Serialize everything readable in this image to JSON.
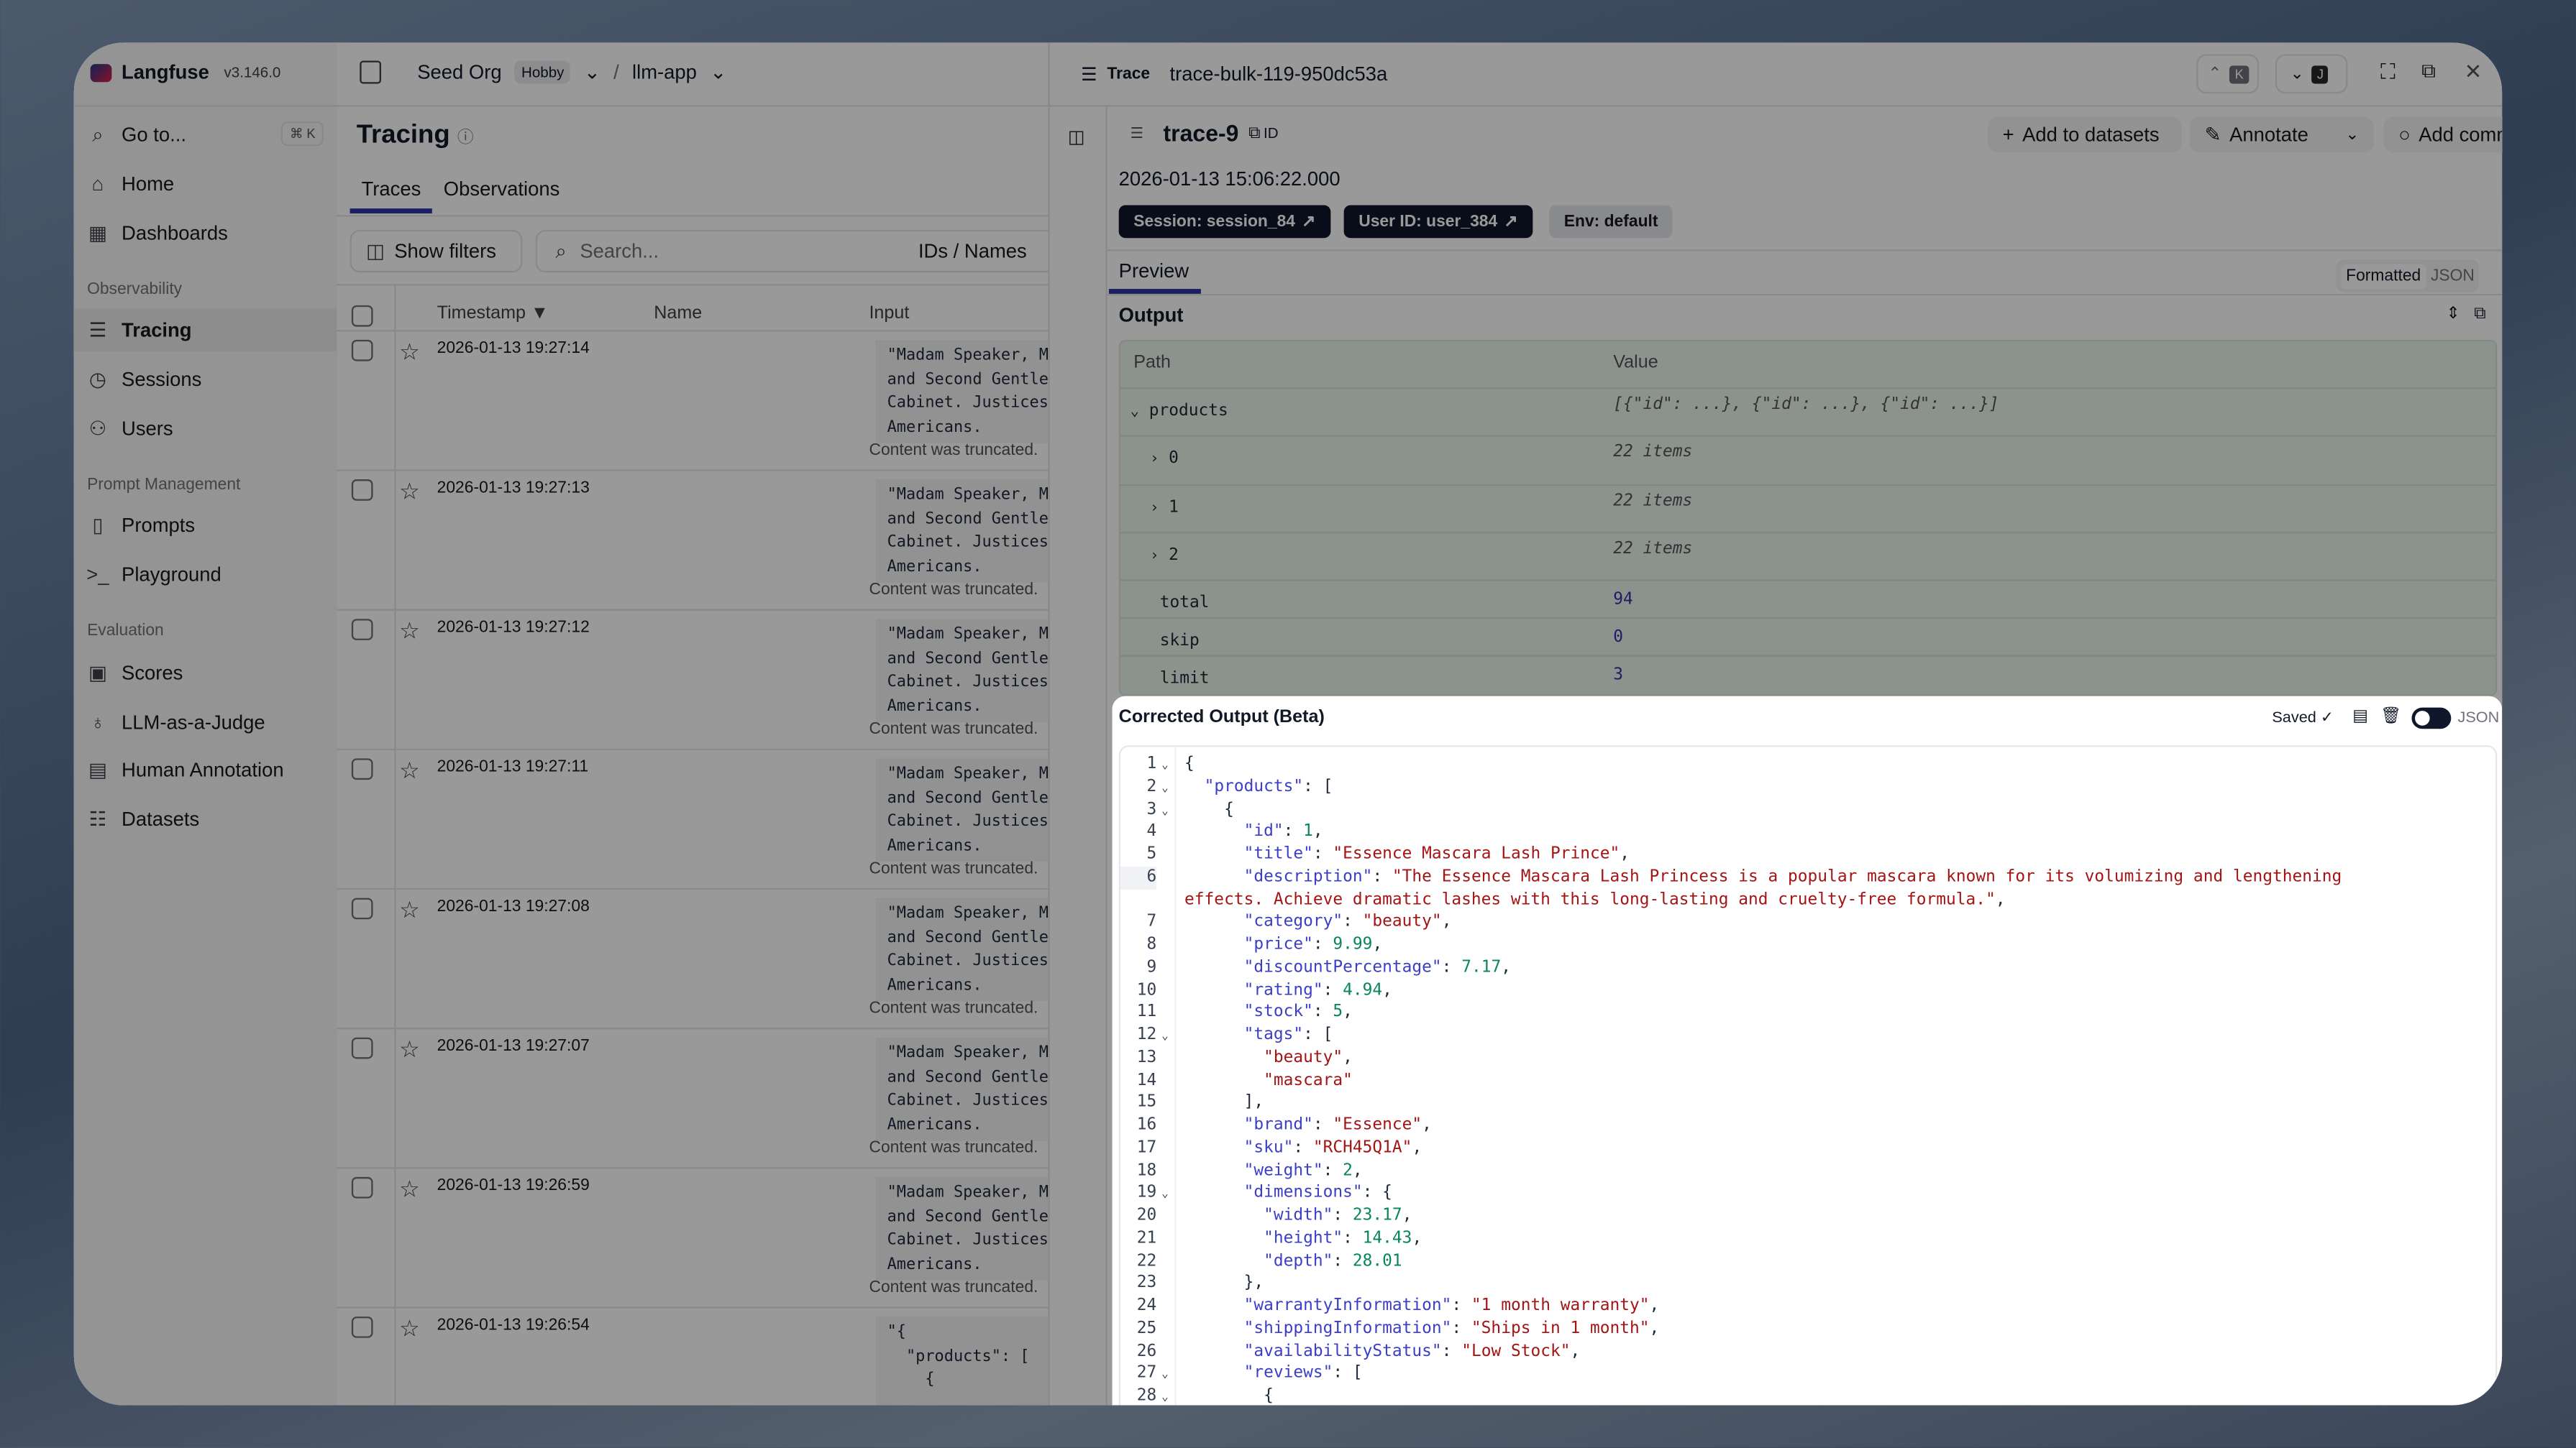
{
  "app": {
    "name": "Langfuse",
    "version": "v3.146.0"
  },
  "sidebar": {
    "goto": {
      "label": "Go to...",
      "shortcut": "⌘ K"
    },
    "items_top": [
      {
        "label": "Home",
        "icon": "home-icon"
      },
      {
        "label": "Dashboards",
        "icon": "dashboard-icon"
      }
    ],
    "sections": [
      {
        "title": "Observability",
        "items": [
          {
            "label": "Tracing",
            "icon": "tracing-icon",
            "active": true
          },
          {
            "label": "Sessions",
            "icon": "clock-icon"
          },
          {
            "label": "Users",
            "icon": "users-icon"
          }
        ]
      },
      {
        "title": "Prompt Management",
        "items": [
          {
            "label": "Prompts",
            "icon": "file-code-icon"
          },
          {
            "label": "Playground",
            "icon": "terminal-icon"
          }
        ]
      },
      {
        "title": "Evaluation",
        "items": [
          {
            "label": "Scores",
            "icon": "scores-icon"
          },
          {
            "label": "LLM-as-a-Judge",
            "icon": "lightbulb-icon"
          },
          {
            "label": "Human Annotation",
            "icon": "annotation-icon"
          },
          {
            "label": "Datasets",
            "icon": "database-icon"
          }
        ]
      }
    ]
  },
  "breadcrumb": {
    "org": "Seed Org",
    "plan": "Hobby",
    "project": "llm-app"
  },
  "tracing": {
    "title": "Tracing",
    "tabs": [
      "Traces",
      "Observations"
    ],
    "show_filters": "Show filters",
    "search_placeholder": "Search...",
    "search_mode": "IDs / Names",
    "columns": [
      "Timestamp ▼",
      "Name",
      "Input"
    ],
    "truncated_note": "Content was truncated.",
    "rows": [
      {
        "timestamp": "2026-01-13 19:27:14",
        "input": "\"Madam Speaker, Ma\nand Second Gentlem\nCabinet. Justices\nAmericans."
      },
      {
        "timestamp": "2026-01-13 19:27:13",
        "input": "\"Madam Speaker, Ma\nand Second Gentlem\nCabinet. Justices\nAmericans."
      },
      {
        "timestamp": "2026-01-13 19:27:12",
        "input": "\"Madam Speaker, Ma\nand Second Gentlem\nCabinet. Justices\nAmericans."
      },
      {
        "timestamp": "2026-01-13 19:27:11",
        "input": "\"Madam Speaker, Ma\nand Second Gentlem\nCabinet. Justices\nAmericans."
      },
      {
        "timestamp": "2026-01-13 19:27:08",
        "input": "\"Madam Speaker, Ma\nand Second Gentlem\nCabinet. Justices\nAmericans."
      },
      {
        "timestamp": "2026-01-13 19:27:07",
        "input": "\"Madam Speaker, Ma\nand Second Gentlem\nCabinet. Justices\nAmericans."
      },
      {
        "timestamp": "2026-01-13 19:26:59",
        "input": "\"Madam Speaker, Ma\nand Second Gentlem\nCabinet. Justices\nAmericans."
      },
      {
        "timestamp": "2026-01-13 19:26:54",
        "input": "\"{\n  \"products\": [\n    {"
      }
    ]
  },
  "detail": {
    "header_label": "Trace",
    "trace_id": "trace-bulk-119-950dc53a",
    "nav_up_key": "K",
    "nav_down_key": "J",
    "trace_name": "trace-9",
    "id_label": "ID",
    "add_to_datasets": "Add to datasets",
    "annotate": "Annotate",
    "add_comment": "Add comment",
    "timestamp": "2026-01-13 15:06:22.000",
    "badges": {
      "session": "Session: session_84",
      "user": "User ID: user_384",
      "env": "Env: default"
    },
    "tab": "Preview",
    "view_modes": [
      "Formatted",
      "JSON"
    ],
    "output_label": "Output",
    "table_headers": [
      "Path",
      "Value"
    ],
    "table_rows": [
      {
        "path": "products",
        "value": "[{\"id\": ...}, {\"id\": ...}, {\"id\": ...}]",
        "toggle": "⌄",
        "indent": 0,
        "kind": "summary"
      },
      {
        "path": "0",
        "value": "22 items",
        "toggle": "›",
        "indent": 1,
        "kind": "summary"
      },
      {
        "path": "1",
        "value": "22 items",
        "toggle": "›",
        "indent": 1,
        "kind": "summary"
      },
      {
        "path": "2",
        "value": "22 items",
        "toggle": "›",
        "indent": 1,
        "kind": "summary"
      },
      {
        "path": "total",
        "value": "94",
        "toggle": "",
        "indent": 1,
        "kind": "number"
      },
      {
        "path": "skip",
        "value": "0",
        "toggle": "",
        "indent": 1,
        "kind": "number"
      },
      {
        "path": "limit",
        "value": "3",
        "toggle": "",
        "indent": 1,
        "kind": "number"
      }
    ]
  },
  "corrected": {
    "title": "Corrected Output (Beta)",
    "status": "Saved ✓",
    "json_toggle_label": "JSON",
    "json_toggle_on": true,
    "lines": [
      [
        [
          "p",
          "{"
        ]
      ],
      [
        [
          "p",
          "  "
        ],
        [
          "k",
          "\"products\""
        ],
        [
          "p",
          ": ["
        ]
      ],
      [
        [
          "p",
          "    {"
        ]
      ],
      [
        [
          "p",
          "      "
        ],
        [
          "k",
          "\"id\""
        ],
        [
          "p",
          ": "
        ],
        [
          "n",
          "1"
        ],
        [
          "p",
          ","
        ]
      ],
      [
        [
          "p",
          "      "
        ],
        [
          "k",
          "\"title\""
        ],
        [
          "p",
          ": "
        ],
        [
          "s",
          "\"Essence Mascara Lash Prince\""
        ],
        [
          "p",
          ","
        ]
      ],
      [
        [
          "p",
          "      "
        ],
        [
          "k",
          "\"description\""
        ],
        [
          "p",
          ": "
        ],
        [
          "s",
          "\"The Essence Mascara Lash Princess is a popular mascara known for its volumizing and lengthening effects. Achieve dramatic lashes with this long-lasting and cruelty-free formula.\""
        ],
        [
          "p",
          ","
        ]
      ],
      [
        [
          "p",
          "      "
        ],
        [
          "k",
          "\"category\""
        ],
        [
          "p",
          ": "
        ],
        [
          "s",
          "\"beauty\""
        ],
        [
          "p",
          ","
        ]
      ],
      [
        [
          "p",
          "      "
        ],
        [
          "k",
          "\"price\""
        ],
        [
          "p",
          ": "
        ],
        [
          "n",
          "9.99"
        ],
        [
          "p",
          ","
        ]
      ],
      [
        [
          "p",
          "      "
        ],
        [
          "k",
          "\"discountPercentage\""
        ],
        [
          "p",
          ": "
        ],
        [
          "n",
          "7.17"
        ],
        [
          "p",
          ","
        ]
      ],
      [
        [
          "p",
          "      "
        ],
        [
          "k",
          "\"rating\""
        ],
        [
          "p",
          ": "
        ],
        [
          "n",
          "4.94"
        ],
        [
          "p",
          ","
        ]
      ],
      [
        [
          "p",
          "      "
        ],
        [
          "k",
          "\"stock\""
        ],
        [
          "p",
          ": "
        ],
        [
          "n",
          "5"
        ],
        [
          "p",
          ","
        ]
      ],
      [
        [
          "p",
          "      "
        ],
        [
          "k",
          "\"tags\""
        ],
        [
          "p",
          ": ["
        ]
      ],
      [
        [
          "p",
          "        "
        ],
        [
          "s",
          "\"beauty\""
        ],
        [
          "p",
          ","
        ]
      ],
      [
        [
          "p",
          "        "
        ],
        [
          "s",
          "\"mascara\""
        ]
      ],
      [
        [
          "p",
          "      ],"
        ]
      ],
      [
        [
          "p",
          "      "
        ],
        [
          "k",
          "\"brand\""
        ],
        [
          "p",
          ": "
        ],
        [
          "s",
          "\"Essence\""
        ],
        [
          "p",
          ","
        ]
      ],
      [
        [
          "p",
          "      "
        ],
        [
          "k",
          "\"sku\""
        ],
        [
          "p",
          ": "
        ],
        [
          "s",
          "\"RCH45Q1A\""
        ],
        [
          "p",
          ","
        ]
      ],
      [
        [
          "p",
          "      "
        ],
        [
          "k",
          "\"weight\""
        ],
        [
          "p",
          ": "
        ],
        [
          "n",
          "2"
        ],
        [
          "p",
          ","
        ]
      ],
      [
        [
          "p",
          "      "
        ],
        [
          "k",
          "\"dimensions\""
        ],
        [
          "p",
          ": {"
        ]
      ],
      [
        [
          "p",
          "        "
        ],
        [
          "k",
          "\"width\""
        ],
        [
          "p",
          ": "
        ],
        [
          "n",
          "23.17"
        ],
        [
          "p",
          ","
        ]
      ],
      [
        [
          "p",
          "        "
        ],
        [
          "k",
          "\"height\""
        ],
        [
          "p",
          ": "
        ],
        [
          "n",
          "14.43"
        ],
        [
          "p",
          ","
        ]
      ],
      [
        [
          "p",
          "        "
        ],
        [
          "k",
          "\"depth\""
        ],
        [
          "p",
          ": "
        ],
        [
          "n",
          "28.01"
        ]
      ],
      [
        [
          "p",
          "      },"
        ]
      ],
      [
        [
          "p",
          "      "
        ],
        [
          "k",
          "\"warrantyInformation\""
        ],
        [
          "p",
          ": "
        ],
        [
          "s",
          "\"1 month warranty\""
        ],
        [
          "p",
          ","
        ]
      ],
      [
        [
          "p",
          "      "
        ],
        [
          "k",
          "\"shippingInformation\""
        ],
        [
          "p",
          ": "
        ],
        [
          "s",
          "\"Ships in 1 month\""
        ],
        [
          "p",
          ","
        ]
      ],
      [
        [
          "p",
          "      "
        ],
        [
          "k",
          "\"availabilityStatus\""
        ],
        [
          "p",
          ": "
        ],
        [
          "s",
          "\"Low Stock\""
        ],
        [
          "p",
          ","
        ]
      ],
      [
        [
          "p",
          "      "
        ],
        [
          "k",
          "\"reviews\""
        ],
        [
          "p",
          ": ["
        ]
      ],
      [
        [
          "p",
          "        {"
        ]
      ]
    ],
    "foldable_lines": [
      1,
      2,
      3,
      12,
      19,
      27,
      28
    ],
    "highlighted_line": 6
  },
  "colors": {
    "accent": "#2e33a3",
    "json_key": "#3b3fc7",
    "json_string": "#a31515",
    "json_number": "#098658"
  }
}
